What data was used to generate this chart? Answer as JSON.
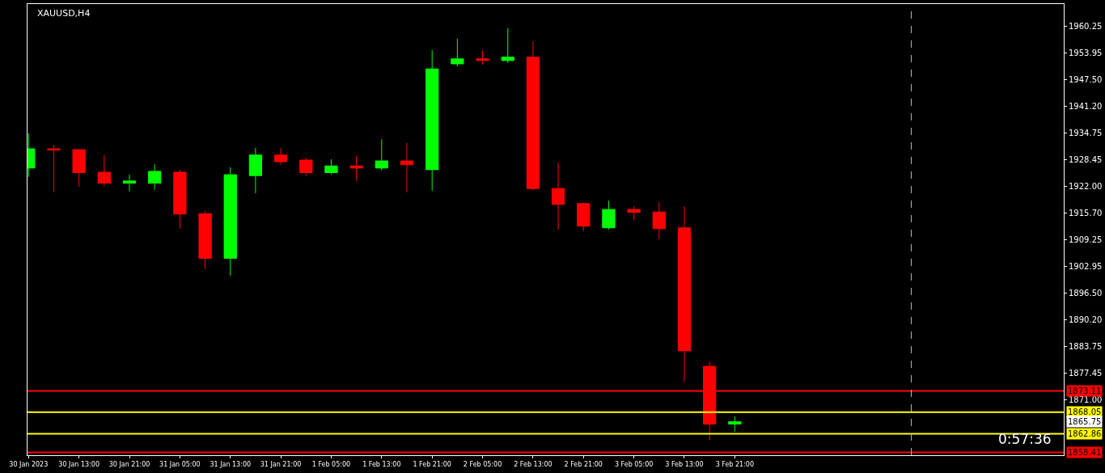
{
  "chart_data": {
    "type": "candlestick",
    "title": "XAUUSD,H4",
    "x": [
      "2023-01-30T05:00",
      "2023-01-30T09:00",
      "2023-01-30T13:00",
      "2023-01-30T17:00",
      "2023-01-30T21:00",
      "2023-01-31T01:00",
      "2023-01-31T05:00",
      "2023-01-31T09:00",
      "2023-01-31T13:00",
      "2023-01-31T17:00",
      "2023-01-31T21:00",
      "2023-02-01T01:00",
      "2023-02-01T05:00",
      "2023-02-01T09:00",
      "2023-02-01T13:00",
      "2023-02-01T17:00",
      "2023-02-01T21:00",
      "2023-02-02T01:00",
      "2023-02-02T05:00",
      "2023-02-02T09:00",
      "2023-02-02T13:00",
      "2023-02-02T17:00",
      "2023-02-02T21:00",
      "2023-02-03T01:00",
      "2023-02-03T05:00",
      "2023-02-03T09:00",
      "2023-02-03T13:00",
      "2023-02-03T17:00",
      "2023-02-03T21:00"
    ],
    "ohlc": [
      [
        1926.4,
        1934.7,
        1924.3,
        1931.0
      ],
      [
        1931.0,
        1931.9,
        1920.6,
        1930.7
      ],
      [
        1930.8,
        1930.9,
        1921.9,
        1925.3
      ],
      [
        1925.4,
        1929.5,
        1922.0,
        1922.8
      ],
      [
        1922.8,
        1924.8,
        1920.8,
        1923.3
      ],
      [
        1922.8,
        1927.3,
        1921.2,
        1925.6
      ],
      [
        1925.4,
        1926.0,
        1911.9,
        1915.4
      ],
      [
        1915.5,
        1916.2,
        1902.3,
        1904.8
      ],
      [
        1904.8,
        1926.6,
        1900.7,
        1924.8
      ],
      [
        1924.6,
        1931.2,
        1920.4,
        1929.5
      ],
      [
        1929.5,
        1931.2,
        1927.2,
        1927.9
      ],
      [
        1928.3,
        1928.9,
        1924.5,
        1925.3
      ],
      [
        1925.3,
        1928.5,
        1924.9,
        1926.9
      ],
      [
        1926.9,
        1929.3,
        1923.3,
        1926.4
      ],
      [
        1926.4,
        1933.3,
        1925.8,
        1928.1
      ],
      [
        1928.1,
        1932.4,
        1920.6,
        1927.2
      ],
      [
        1926.0,
        1954.6,
        1921.0,
        1950.1
      ],
      [
        1951.3,
        1957.3,
        1950.7,
        1952.5
      ],
      [
        1952.5,
        1954.6,
        1951.1,
        1952.1
      ],
      [
        1952.1,
        1959.8,
        1951.5,
        1952.9
      ],
      [
        1952.9,
        1956.7,
        1921.1,
        1921.5
      ],
      [
        1921.5,
        1927.7,
        1911.7,
        1917.7
      ],
      [
        1917.9,
        1918.1,
        1911.3,
        1912.5
      ],
      [
        1912.1,
        1918.6,
        1911.7,
        1916.5
      ],
      [
        1916.5,
        1917.3,
        1913.9,
        1915.8
      ],
      [
        1915.9,
        1918.3,
        1909.4,
        1911.9
      ],
      [
        1912.1,
        1917.3,
        1875.4,
        1882.7
      ],
      [
        1879.0,
        1880.2,
        1861.4,
        1865.2
      ],
      [
        1865.2,
        1867.0,
        1863.4,
        1865.75
      ]
    ],
    "colors": [
      "#00ff00",
      "#ff0000",
      "#ff0000",
      "#ff0000",
      "#00ff00",
      "#00ff00",
      "#ff0000",
      "#ff0000",
      "#00ff00",
      "#00ff00",
      "#ff0000",
      "#ff0000",
      "#00ff00",
      "#ff0000",
      "#00ff00",
      "#ff0000",
      "#00ff00",
      "#00ff00",
      "#ff0000",
      "#00ff00",
      "#ff0000",
      "#ff0000",
      "#ff0000",
      "#00ff00",
      "#ff0000",
      "#ff0000",
      "#ff0000",
      "#ff0000",
      "#00ff00"
    ],
    "xlim": [
      "2023-01-30T04:50",
      "2023-02-06T01:10"
    ],
    "xticks": [
      {
        "value": "2023-01-30T05:00",
        "label": "30 Jan 2023"
      },
      {
        "value": "2023-01-30T13:00",
        "label": "30 Jan 13:00"
      },
      {
        "value": "2023-01-30T21:00",
        "label": "30 Jan 21:00"
      },
      {
        "value": "2023-01-31T05:00",
        "label": "31 Jan 05:00"
      },
      {
        "value": "2023-01-31T13:00",
        "label": "31 Jan 13:00"
      },
      {
        "value": "2023-01-31T21:00",
        "label": "31 Jan 21:00"
      },
      {
        "value": "2023-02-01T05:00",
        "label": "1 Feb 05:00"
      },
      {
        "value": "2023-02-01T13:00",
        "label": "1 Feb 13:00"
      },
      {
        "value": "2023-02-01T21:00",
        "label": "1 Feb 21:00"
      },
      {
        "value": "2023-02-02T05:00",
        "label": "2 Feb 05:00"
      },
      {
        "value": "2023-02-02T13:00",
        "label": "2 Feb 13:00"
      },
      {
        "value": "2023-02-02T21:00",
        "label": "2 Feb 21:00"
      },
      {
        "value": "2023-02-03T05:00",
        "label": "3 Feb 05:00"
      },
      {
        "value": "2023-02-03T13:00",
        "label": "3 Feb 13:00"
      },
      {
        "value": "2023-02-03T21:00",
        "label": "3 Feb 21:00"
      }
    ],
    "ylim": [
      1857.75,
      1965.6
    ],
    "yticks": [
      {
        "value": 1960.25,
        "label": "1960.25"
      },
      {
        "value": 1953.95,
        "label": "1953.95"
      },
      {
        "value": 1947.5,
        "label": "1947.50"
      },
      {
        "value": 1941.2,
        "label": "1941.20"
      },
      {
        "value": 1934.75,
        "label": "1934.75"
      },
      {
        "value": 1928.45,
        "label": "1928.45"
      },
      {
        "value": 1922.0,
        "label": "1922.00"
      },
      {
        "value": 1915.7,
        "label": "1915.70"
      },
      {
        "value": 1909.25,
        "label": "1909.25"
      },
      {
        "value": 1902.95,
        "label": "1902.95"
      },
      {
        "value": 1896.5,
        "label": "1896.50"
      },
      {
        "value": 1890.2,
        "label": "1890.20"
      },
      {
        "value": 1883.75,
        "label": "1883.75"
      },
      {
        "value": 1877.45,
        "label": "1877.45"
      },
      {
        "value": 1871.0,
        "label": "1871.00"
      }
    ],
    "ref_lines": [
      {
        "axis": "y",
        "value": 1873.11,
        "label": "1873.11",
        "color": "#ff0000"
      },
      {
        "axis": "y",
        "value": 1868.05,
        "label": "1868.05",
        "color": "#ffff00"
      },
      {
        "axis": "y",
        "value": 1862.86,
        "label": "1862.86",
        "color": "#ffff00"
      },
      {
        "axis": "y",
        "value": 1858.41,
        "label": "1858.41",
        "color": "#ff0000"
      },
      {
        "axis": "x",
        "value": "2023-02-05T01:00",
        "color": "#c0c0c0",
        "line_style": "dashed"
      }
    ],
    "annotations": [
      "1865.75",
      "0:57:36"
    ]
  }
}
